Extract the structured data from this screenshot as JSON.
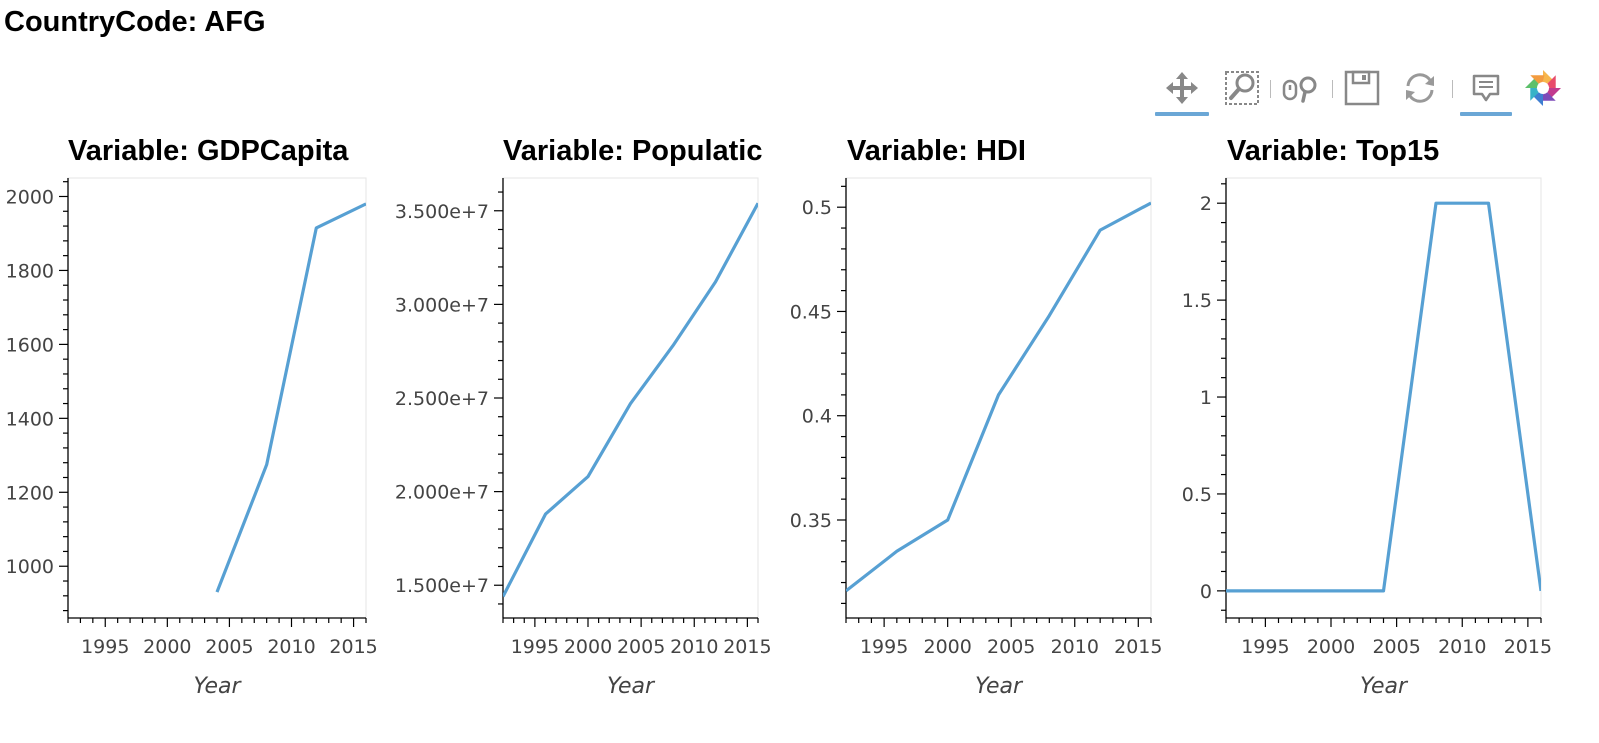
{
  "page_title": "CountryCode: AFG",
  "toolbar": {
    "tools": [
      {
        "name": "pan-tool",
        "icon": "move-icon",
        "active": true
      },
      {
        "name": "box-zoom-tool",
        "icon": "box-zoom-icon",
        "active": false
      },
      {
        "name": "wheel-zoom-tool",
        "icon": "wheel-zoom-icon",
        "active": false
      },
      {
        "name": "save-tool",
        "icon": "save-icon",
        "active": false
      },
      {
        "name": "reset-tool",
        "icon": "reset-icon",
        "active": false
      },
      {
        "name": "hover-tool",
        "icon": "hover-icon",
        "active": true
      },
      {
        "name": "bokeh-logo",
        "icon": "bokeh-logo-icon",
        "active": false
      }
    ]
  },
  "line_color": "#57a0d3",
  "chart_data": [
    {
      "type": "line",
      "title": "Variable: GDPCapita",
      "xlabel": "Year",
      "ylabel": "",
      "xlim": [
        1992,
        2016
      ],
      "ylim": [
        860,
        2050
      ],
      "x_ticks": [
        1995,
        2000,
        2005,
        2010,
        2015
      ],
      "y_ticks": [
        1000,
        1200,
        1400,
        1600,
        1800,
        2000
      ],
      "y_tick_labels": [
        "1000",
        "1200",
        "1400",
        "1600",
        "1800",
        "2000"
      ],
      "x": [
        2004,
        2008,
        2012,
        2016
      ],
      "y": [
        930,
        1275,
        1915,
        1980
      ]
    },
    {
      "type": "line",
      "title": "Variable: Populatic",
      "xlabel": "Year",
      "ylabel": "",
      "xlim": [
        1992,
        2016
      ],
      "ylim": [
        13250000,
        36750000
      ],
      "x_ticks": [
        1995,
        2000,
        2005,
        2010,
        2015
      ],
      "y_ticks": [
        15000000,
        20000000,
        25000000,
        30000000,
        35000000
      ],
      "y_tick_labels": [
        "1.500e+7",
        "2.000e+7",
        "2.500e+7",
        "3.000e+7",
        "3.500e+7"
      ],
      "x": [
        1992,
        1996,
        2000,
        2004,
        2008,
        2012,
        2016
      ],
      "y": [
        14400000,
        18800000,
        20800000,
        24700000,
        27800000,
        31200000,
        35400000
      ]
    },
    {
      "type": "line",
      "title": "Variable: HDI",
      "xlabel": "Year",
      "ylabel": "",
      "xlim": [
        1992,
        2016
      ],
      "ylim": [
        0.303,
        0.514
      ],
      "x_ticks": [
        1995,
        2000,
        2005,
        2010,
        2015
      ],
      "y_ticks": [
        0.35,
        0.4,
        0.45,
        0.5
      ],
      "y_tick_labels": [
        "0.35",
        "0.4",
        "0.45",
        "0.5"
      ],
      "x": [
        1992,
        1996,
        2000,
        2004,
        2008,
        2012,
        2016
      ],
      "y": [
        0.316,
        0.335,
        0.35,
        0.41,
        0.448,
        0.489,
        0.502
      ]
    },
    {
      "type": "line",
      "title": "Variable: Top15",
      "xlabel": "Year",
      "ylabel": "",
      "xlim": [
        1992,
        2016
      ],
      "ylim": [
        -0.14,
        2.13
      ],
      "x_ticks": [
        1995,
        2000,
        2005,
        2010,
        2015
      ],
      "y_ticks": [
        0,
        0.5,
        1,
        1.5,
        2
      ],
      "y_tick_labels": [
        "0",
        "0.5",
        "1",
        "1.5",
        "2"
      ],
      "x": [
        1992,
        1996,
        2000,
        2004,
        2008,
        2012,
        2016
      ],
      "y": [
        0,
        0,
        0,
        0,
        2,
        2,
        0
      ]
    }
  ]
}
